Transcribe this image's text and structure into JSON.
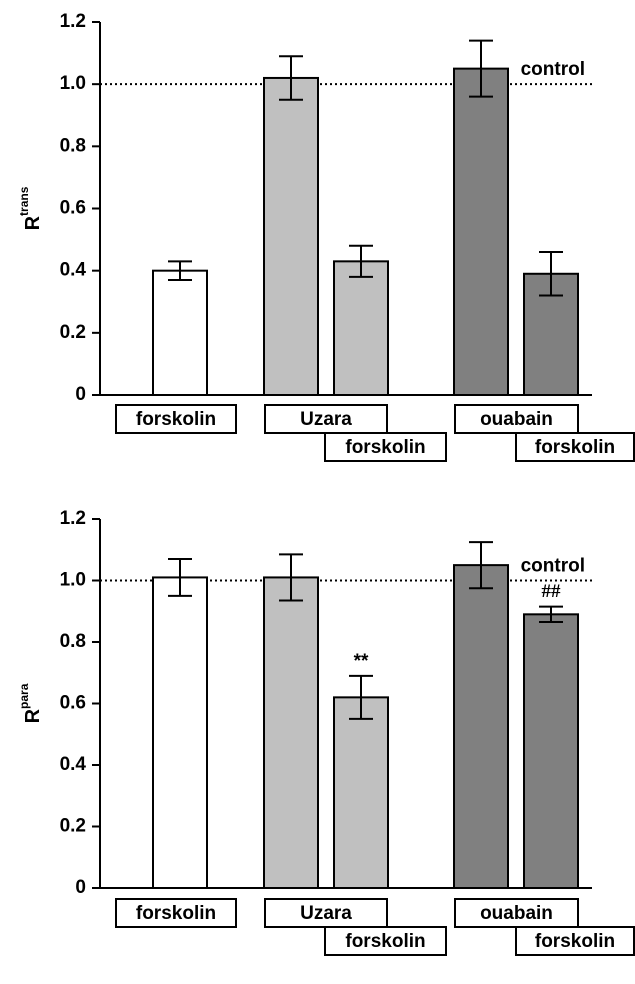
{
  "chart_data": [
    {
      "type": "bar",
      "y_label": "R",
      "y_label_sup": "trans",
      "categories": [
        "forskolin",
        "Uzara",
        "forskolin",
        "ouabain",
        "forskolin"
      ],
      "values": [
        0.4,
        1.02,
        0.43,
        1.05,
        0.39
      ],
      "errors": [
        0.03,
        0.07,
        0.05,
        0.09,
        0.07
      ],
      "colors": [
        "#ffffff",
        "#c0c0c0",
        "#c0c0c0",
        "#808080",
        "#808080"
      ],
      "value_annotations": [
        null,
        null,
        null,
        null,
        null
      ],
      "reference_line": {
        "value": 1,
        "label": "control"
      },
      "ylim": [
        0,
        1.2
      ],
      "yticks": [
        0,
        0.2,
        0.4,
        0.6,
        0.8,
        {
          "value": 1,
          "label": "1.0"
        },
        1.2
      ]
    },
    {
      "type": "bar",
      "y_label": "R",
      "y_label_sup": "para",
      "categories": [
        "forskolin",
        "Uzara",
        "forskolin",
        "ouabain",
        "forskolin"
      ],
      "values": [
        1.01,
        1.01,
        0.62,
        1.05,
        0.89
      ],
      "errors": [
        0.06,
        0.075,
        0.07,
        0.075,
        0.025
      ],
      "colors": [
        "#ffffff",
        "#c0c0c0",
        "#c0c0c0",
        "#808080",
        "#808080"
      ],
      "value_annotations": [
        null,
        null,
        "**",
        null,
        "##"
      ],
      "reference_line": {
        "value": 1,
        "label": "control"
      },
      "ylim": [
        0,
        1.2
      ],
      "yticks": [
        0,
        0.2,
        0.4,
        0.6,
        0.8,
        {
          "value": 1,
          "label": "1.0"
        },
        1.2
      ]
    }
  ]
}
